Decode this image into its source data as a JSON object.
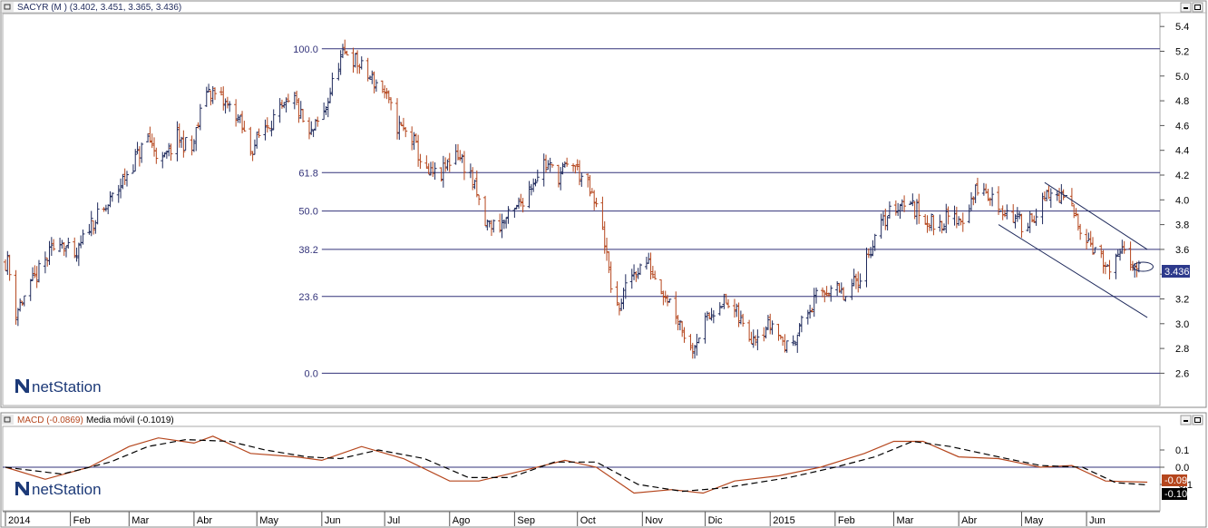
{
  "price_panel": {
    "title": "SACYR (M ) (3.402, 3.451, 3.365, 3.436)",
    "last_value": "3.436",
    "colors": {
      "up": "#1f2a5c",
      "down": "#b5461d",
      "line": "#1f2a5c",
      "frame": "#888888"
    },
    "buttons": {
      "minimize": "▪",
      "maximize": "□"
    }
  },
  "macd_panel": {
    "title_macd": "MACD (-0.0869)",
    "title_ma": "Media móvil (-0.1019)",
    "macd_value": "-0.09",
    "signal_value": "-0.10",
    "colors": {
      "macd": "#b5461d",
      "signal": "#000000",
      "macd_badge": "#b5461d",
      "signal_badge": "#000000"
    },
    "buttons": {
      "minimize": "▪",
      "maximize": "□"
    }
  },
  "logo": {
    "text": "netStation",
    "icon": "netstation-n-icon",
    "color": "#1d3a78"
  },
  "x_axis": {
    "months": [
      "2014",
      "Feb",
      "Mar",
      "Abr",
      "May",
      "Jun",
      "Jul",
      "Ago",
      "Sep",
      "Oct",
      "Nov",
      "Dic",
      "2015",
      "Feb",
      "Mar",
      "Abr",
      "May",
      "Jun"
    ]
  },
  "chart_data": [
    {
      "type": "ohlc",
      "title": "SACYR (M ) (3.402, 3.451, 3.365, 3.436)",
      "ylim": [
        2.4,
        5.5
      ],
      "y_ticks": [
        2.6,
        2.8,
        3.0,
        3.2,
        3.4,
        3.6,
        3.8,
        4.0,
        4.2,
        4.4,
        4.6,
        4.8,
        5.0,
        5.2,
        5.4
      ],
      "x_range": [
        "2014-01",
        "2015-06"
      ],
      "last": {
        "open": 3.402,
        "high": 3.451,
        "low": 3.365,
        "close": 3.436
      },
      "closes_approx": [
        {
          "x": "2014-01-02",
          "y": 3.5
        },
        {
          "x": "2014-01-06",
          "y": 3.1
        },
        {
          "x": "2014-01-13",
          "y": 3.3
        },
        {
          "x": "2014-01-20",
          "y": 3.5
        },
        {
          "x": "2014-01-27",
          "y": 3.7
        },
        {
          "x": "2014-02-03",
          "y": 3.5
        },
        {
          "x": "2014-02-10",
          "y": 3.8
        },
        {
          "x": "2014-02-17",
          "y": 3.9
        },
        {
          "x": "2014-02-24",
          "y": 4.1
        },
        {
          "x": "2014-03-03",
          "y": 4.3
        },
        {
          "x": "2014-03-10",
          "y": 4.5
        },
        {
          "x": "2014-03-17",
          "y": 4.3
        },
        {
          "x": "2014-03-24",
          "y": 4.5
        },
        {
          "x": "2014-03-31",
          "y": 4.4
        },
        {
          "x": "2014-04-07",
          "y": 4.9
        },
        {
          "x": "2014-04-14",
          "y": 4.8
        },
        {
          "x": "2014-04-21",
          "y": 4.7
        },
        {
          "x": "2014-04-28",
          "y": 4.4
        },
        {
          "x": "2014-05-05",
          "y": 4.6
        },
        {
          "x": "2014-05-12",
          "y": 4.7
        },
        {
          "x": "2014-05-19",
          "y": 4.8
        },
        {
          "x": "2014-05-26",
          "y": 4.5
        },
        {
          "x": "2014-06-02",
          "y": 4.7
        },
        {
          "x": "2014-06-09",
          "y": 5.1
        },
        {
          "x": "2014-06-13",
          "y": 5.2
        },
        {
          "x": "2014-06-23",
          "y": 5.0
        },
        {
          "x": "2014-06-30",
          "y": 4.9
        },
        {
          "x": "2014-07-07",
          "y": 4.6
        },
        {
          "x": "2014-07-14",
          "y": 4.5
        },
        {
          "x": "2014-07-21",
          "y": 4.2
        },
        {
          "x": "2014-07-28",
          "y": 4.2
        },
        {
          "x": "2014-08-04",
          "y": 4.4
        },
        {
          "x": "2014-08-11",
          "y": 4.2
        },
        {
          "x": "2014-08-18",
          "y": 3.8
        },
        {
          "x": "2014-08-25",
          "y": 3.8
        },
        {
          "x": "2014-09-01",
          "y": 3.9
        },
        {
          "x": "2014-09-08",
          "y": 4.1
        },
        {
          "x": "2014-09-15",
          "y": 4.3
        },
        {
          "x": "2014-09-22",
          "y": 4.2
        },
        {
          "x": "2014-09-29",
          "y": 4.3
        },
        {
          "x": "2014-10-06",
          "y": 4.1
        },
        {
          "x": "2014-10-13",
          "y": 3.8
        },
        {
          "x": "2014-10-16",
          "y": 3.4
        },
        {
          "x": "2014-10-20",
          "y": 3.1
        },
        {
          "x": "2014-10-27",
          "y": 3.4
        },
        {
          "x": "2014-11-03",
          "y": 3.5
        },
        {
          "x": "2014-11-10",
          "y": 3.3
        },
        {
          "x": "2014-11-17",
          "y": 3.1
        },
        {
          "x": "2014-11-24",
          "y": 2.8
        },
        {
          "x": "2014-12-01",
          "y": 3.0
        },
        {
          "x": "2014-12-08",
          "y": 3.2
        },
        {
          "x": "2014-12-15",
          "y": 3.1
        },
        {
          "x": "2014-12-22",
          "y": 2.9
        },
        {
          "x": "2015-01-02",
          "y": 3.0
        },
        {
          "x": "2015-01-09",
          "y": 2.8
        },
        {
          "x": "2015-01-16",
          "y": 3.0
        },
        {
          "x": "2015-01-23",
          "y": 3.2
        },
        {
          "x": "2015-01-30",
          "y": 3.3
        },
        {
          "x": "2015-02-06",
          "y": 3.2
        },
        {
          "x": "2015-02-13",
          "y": 3.4
        },
        {
          "x": "2015-02-20",
          "y": 3.7
        },
        {
          "x": "2015-02-27",
          "y": 3.9
        },
        {
          "x": "2015-03-06",
          "y": 4.0
        },
        {
          "x": "2015-03-13",
          "y": 3.9
        },
        {
          "x": "2015-03-20",
          "y": 3.8
        },
        {
          "x": "2015-03-27",
          "y": 3.85
        },
        {
          "x": "2015-04-03",
          "y": 3.85
        },
        {
          "x": "2015-04-10",
          "y": 4.1
        },
        {
          "x": "2015-04-17",
          "y": 4.0
        },
        {
          "x": "2015-04-24",
          "y": 3.9
        },
        {
          "x": "2015-05-01",
          "y": 3.8
        },
        {
          "x": "2015-05-08",
          "y": 3.9
        },
        {
          "x": "2015-05-15",
          "y": 4.05
        },
        {
          "x": "2015-05-22",
          "y": 4.0
        },
        {
          "x": "2015-05-29",
          "y": 3.8
        },
        {
          "x": "2015-06-05",
          "y": 3.6
        },
        {
          "x": "2015-06-12",
          "y": 3.4
        },
        {
          "x": "2015-06-19",
          "y": 3.6
        },
        {
          "x": "2015-06-26",
          "y": 3.436
        }
      ],
      "fibonacci": {
        "levels": [
          {
            "label": "100.0",
            "price": 5.22
          },
          {
            "label": "61.8",
            "price": 4.22
          },
          {
            "label": "50.0",
            "price": 3.91
          },
          {
            "label": "38.2",
            "price": 3.6
          },
          {
            "label": "23.6",
            "price": 3.22
          },
          {
            "label": "0.0",
            "price": 2.6
          }
        ],
        "start_x": "2014-06-01"
      },
      "channel": [
        {
          "from": {
            "x": "2015-05-12",
            "y": 4.14
          },
          "to": {
            "x": "2015-06-30",
            "y": 3.6
          }
        },
        {
          "from": {
            "x": "2015-04-20",
            "y": 3.8
          },
          "to": {
            "x": "2015-06-30",
            "y": 3.05
          }
        }
      ],
      "marker": {
        "x": "2015-06-28",
        "y": 3.46
      }
    },
    {
      "type": "line",
      "title": "MACD (-0.0869) / Media móvil (-0.1019)",
      "ylim": [
        -0.17,
        0.2
      ],
      "y_ticks": [
        -0.1,
        0.0,
        0.1
      ],
      "y_tick_labels": [
        "-0.1",
        "0.0",
        "0.1"
      ],
      "series": [
        {
          "name": "MACD (-0.0869)",
          "points": [
            {
              "x": "2014-01-01",
              "y": 0.0
            },
            {
              "x": "2014-01-20",
              "y": -0.07
            },
            {
              "x": "2014-02-10",
              "y": 0.0
            },
            {
              "x": "2014-03-01",
              "y": 0.12
            },
            {
              "x": "2014-03-15",
              "y": 0.17
            },
            {
              "x": "2014-04-01",
              "y": 0.14
            },
            {
              "x": "2014-04-10",
              "y": 0.18
            },
            {
              "x": "2014-04-28",
              "y": 0.08
            },
            {
              "x": "2014-05-20",
              "y": 0.06
            },
            {
              "x": "2014-06-01",
              "y": 0.04
            },
            {
              "x": "2014-06-20",
              "y": 0.12
            },
            {
              "x": "2014-07-10",
              "y": 0.05
            },
            {
              "x": "2014-08-01",
              "y": -0.08
            },
            {
              "x": "2014-08-15",
              "y": -0.08
            },
            {
              "x": "2014-09-05",
              "y": -0.02
            },
            {
              "x": "2014-09-25",
              "y": 0.04
            },
            {
              "x": "2014-10-10",
              "y": 0.0
            },
            {
              "x": "2014-10-28",
              "y": -0.15
            },
            {
              "x": "2014-11-15",
              "y": -0.13
            },
            {
              "x": "2014-11-30",
              "y": -0.15
            },
            {
              "x": "2014-12-15",
              "y": -0.08
            },
            {
              "x": "2015-01-05",
              "y": -0.05
            },
            {
              "x": "2015-01-25",
              "y": 0.0
            },
            {
              "x": "2015-02-15",
              "y": 0.08
            },
            {
              "x": "2015-03-01",
              "y": 0.15
            },
            {
              "x": "2015-03-15",
              "y": 0.15
            },
            {
              "x": "2015-04-01",
              "y": 0.06
            },
            {
              "x": "2015-04-20",
              "y": 0.05
            },
            {
              "x": "2015-05-10",
              "y": 0.0
            },
            {
              "x": "2015-05-25",
              "y": 0.01
            },
            {
              "x": "2015-06-10",
              "y": -0.08
            },
            {
              "x": "2015-06-30",
              "y": -0.0869
            }
          ]
        },
        {
          "name": "Media móvil (-0.1019)",
          "points": [
            {
              "x": "2014-01-01",
              "y": 0.0
            },
            {
              "x": "2014-01-28",
              "y": -0.04
            },
            {
              "x": "2014-02-20",
              "y": 0.03
            },
            {
              "x": "2014-03-10",
              "y": 0.12
            },
            {
              "x": "2014-03-28",
              "y": 0.16
            },
            {
              "x": "2014-04-18",
              "y": 0.15
            },
            {
              "x": "2014-05-05",
              "y": 0.1
            },
            {
              "x": "2014-05-25",
              "y": 0.06
            },
            {
              "x": "2014-06-10",
              "y": 0.05
            },
            {
              "x": "2014-06-28",
              "y": 0.1
            },
            {
              "x": "2014-07-20",
              "y": 0.05
            },
            {
              "x": "2014-08-10",
              "y": -0.06
            },
            {
              "x": "2014-08-30",
              "y": -0.06
            },
            {
              "x": "2014-09-20",
              "y": 0.03
            },
            {
              "x": "2014-10-10",
              "y": 0.03
            },
            {
              "x": "2014-10-30",
              "y": -0.1
            },
            {
              "x": "2014-11-20",
              "y": -0.14
            },
            {
              "x": "2014-12-10",
              "y": -0.12
            },
            {
              "x": "2015-01-10",
              "y": -0.06
            },
            {
              "x": "2015-02-01",
              "y": 0.0
            },
            {
              "x": "2015-02-20",
              "y": 0.06
            },
            {
              "x": "2015-03-10",
              "y": 0.15
            },
            {
              "x": "2015-03-28",
              "y": 0.12
            },
            {
              "x": "2015-04-20",
              "y": 0.06
            },
            {
              "x": "2015-05-10",
              "y": 0.01
            },
            {
              "x": "2015-05-30",
              "y": 0.0
            },
            {
              "x": "2015-06-15",
              "y": -0.09
            },
            {
              "x": "2015-06-30",
              "y": -0.1019
            }
          ]
        }
      ]
    }
  ]
}
